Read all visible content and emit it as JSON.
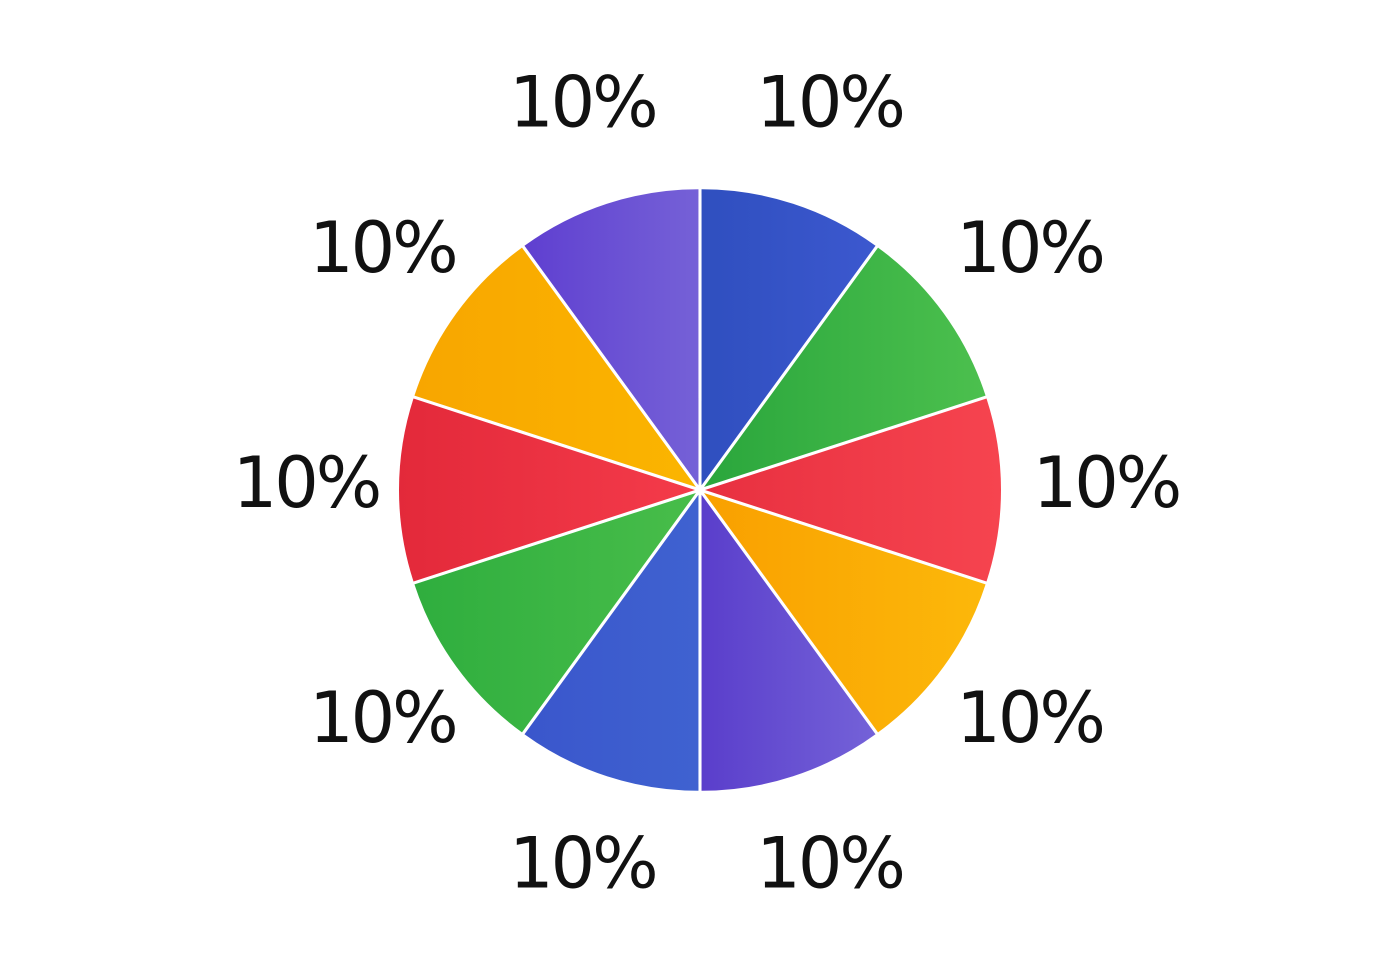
{
  "chart_data": {
    "type": "pie",
    "title": "",
    "start_angle_deg": 0,
    "direction": "clockwise",
    "slices": [
      {
        "label": "10%",
        "value": 10,
        "color_start": "#2f4fbf",
        "color_end": "#3c58cf"
      },
      {
        "label": "10%",
        "value": 10,
        "color_start": "#2aa63c",
        "color_end": "#4cc04e"
      },
      {
        "label": "10%",
        "value": 10,
        "color_start": "#e83040",
        "color_end": "#f6444f"
      },
      {
        "label": "10%",
        "value": 10,
        "color_start": "#f9a000",
        "color_end": "#fcb80a"
      },
      {
        "label": "10%",
        "value": 10,
        "color_start": "#5a3ecb",
        "color_end": "#7462d8"
      },
      {
        "label": "10%",
        "value": 10,
        "color_start": "#3a56cc",
        "color_end": "#3f62d0"
      },
      {
        "label": "10%",
        "value": 10,
        "color_start": "#2fae3e",
        "color_end": "#48bd4a"
      },
      {
        "label": "10%",
        "value": 10,
        "color_start": "#e3293a",
        "color_end": "#f43b4a"
      },
      {
        "label": "10%",
        "value": 10,
        "color_start": "#f8a600",
        "color_end": "#fbb500"
      },
      {
        "label": "10%",
        "value": 10,
        "color_start": "#5f3fd0",
        "color_end": "#7561d7"
      }
    ]
  }
}
